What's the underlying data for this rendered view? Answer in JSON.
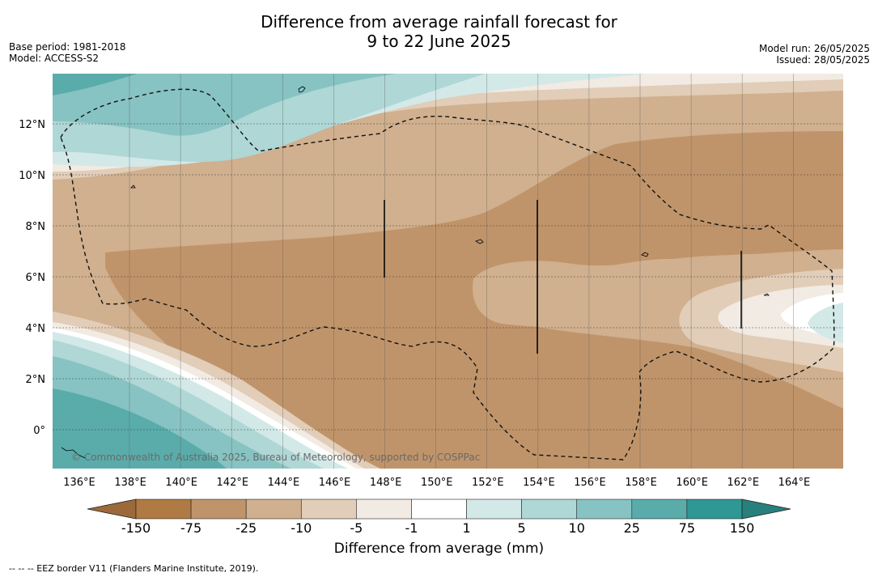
{
  "header": {
    "title_line1": "Difference from average rainfall forecast for",
    "title_line2": "9 to 22 June 2025",
    "base_period": "Base period: 1981-2018",
    "model": "Model: ACCESS-S2",
    "model_run": "Model run: 26/05/2025",
    "issued": "Issued: 28/05/2025"
  },
  "map": {
    "x_ticks": [
      "136°E",
      "138°E",
      "140°E",
      "142°E",
      "144°E",
      "146°E",
      "148°E",
      "150°E",
      "152°E",
      "154°E",
      "156°E",
      "158°E",
      "160°E",
      "162°E",
      "164°E"
    ],
    "y_ticks": [
      "12°N",
      "10°N",
      "8°N",
      "6°N",
      "4°N",
      "2°N",
      "0°"
    ],
    "copyright": "© Commonwealth of Australia 2025, Bureau of Meteorology, supported by COSPPac"
  },
  "colorbar": {
    "labels": [
      "-150",
      "-75",
      "-25",
      "-10",
      "-5",
      "-1",
      "1",
      "5",
      "10",
      "25",
      "75",
      "150"
    ],
    "colors": [
      "#b07a44",
      "#c0946a",
      "#d0b08e",
      "#e2cdb8",
      "#f1ebe3",
      "#ffffff",
      "#d2e9e8",
      "#afd7d6",
      "#87c3c2",
      "#5aacab",
      "#2f9894"
    ],
    "under_color": "#9c6a3a",
    "over_color": "#28807c",
    "title": "Difference from average (mm)"
  },
  "footnote": "--  --  -- EEZ border V11 (Flanders Marine Institute, 2019)."
}
